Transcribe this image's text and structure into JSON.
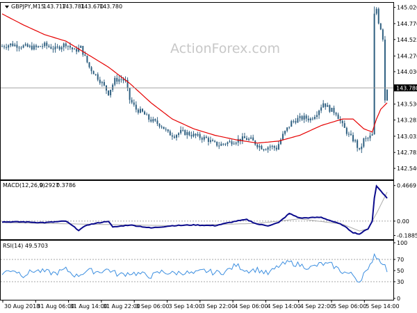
{
  "header": {
    "symbol": "GBPJPY,M15",
    "open": "143.717",
    "high": "143.781",
    "low": "143.670",
    "close": "143.780"
  },
  "watermark": "ActionForex.com",
  "colors": {
    "candle": "#2e5f80",
    "ma": "#e60000",
    "macd_hist": "#0a0a8c",
    "macd_signal": "#aaaaaa",
    "rsi": "#3b8ee0",
    "level_line": "#999999",
    "grid_dotted": "#888888"
  },
  "chart_data": [
    {
      "type": "candlestick",
      "title": "GBPJPY,M15",
      "ylim": [
        142.38,
        145.08
      ],
      "y_ticks": [
        "145.020",
        "144.770",
        "144.525",
        "144.270",
        "144.030",
        "143.780",
        "143.530",
        "143.285",
        "143.035",
        "142.785",
        "142.540"
      ],
      "current_price_label": "143.780",
      "x_tick_labels": [
        "30 Aug 2018",
        "31 Aug 06:00",
        "31 Aug 14:00",
        "31 Aug 22:00",
        "3 Sep 06:00",
        "3 Sep 14:00",
        "3 Sep 22:00",
        "4 Sep 06:00",
        "4 Sep 14:00",
        "4 Sep 22:00",
        "5 Sep 06:00",
        "5 Sep 14:00"
      ],
      "close_path": [
        [
          0,
          144.42
        ],
        [
          4,
          144.45
        ],
        [
          8,
          144.43
        ],
        [
          12,
          144.41
        ],
        [
          16,
          144.4
        ],
        [
          20,
          144.44
        ],
        [
          25,
          144.38
        ],
        [
          30,
          144.46
        ],
        [
          34,
          144.35
        ],
        [
          37,
          144.4
        ],
        [
          41,
          144.1
        ],
        [
          44,
          143.98
        ],
        [
          47,
          143.85
        ],
        [
          50,
          143.7
        ],
        [
          53,
          143.9
        ],
        [
          56,
          143.92
        ],
        [
          58,
          143.88
        ],
        [
          60,
          143.6
        ],
        [
          63,
          143.45
        ],
        [
          66,
          143.4
        ],
        [
          69,
          143.3
        ],
        [
          72,
          143.25
        ],
        [
          75,
          143.2
        ],
        [
          78,
          143.08
        ],
        [
          81,
          143.05
        ],
        [
          84,
          143.1
        ],
        [
          87,
          143.08
        ],
        [
          90,
          143.05
        ],
        [
          93,
          143.02
        ],
        [
          96,
          143.0
        ],
        [
          99,
          142.93
        ],
        [
          102,
          142.9
        ],
        [
          105,
          142.93
        ],
        [
          108,
          142.95
        ],
        [
          111,
          142.98
        ],
        [
          114,
          143.0
        ],
        [
          117,
          142.98
        ],
        [
          120,
          142.9
        ],
        [
          123,
          142.85
        ],
        [
          126,
          142.88
        ],
        [
          129,
          142.85
        ],
        [
          132,
          143.05
        ],
        [
          134,
          143.15
        ],
        [
          136,
          143.25
        ],
        [
          139,
          143.3
        ],
        [
          142,
          143.32
        ],
        [
          145,
          143.3
        ],
        [
          148,
          143.4
        ],
        [
          151,
          143.55
        ],
        [
          154,
          143.45
        ],
        [
          157,
          143.4
        ],
        [
          160,
          143.2
        ],
        [
          163,
          143.05
        ],
        [
          166,
          142.95
        ],
        [
          168,
          142.8
        ],
        [
          170,
          142.98
        ],
        [
          172,
          143.0
        ],
        [
          174,
          143.05
        ],
        [
          175,
          144.9
        ],
        [
          176,
          145.0
        ],
        [
          177,
          144.8
        ],
        [
          178,
          144.7
        ],
        [
          179,
          144.55
        ],
        [
          180,
          143.6
        ],
        [
          181,
          143.78
        ]
      ],
      "ma_path": [
        [
          0,
          144.92
        ],
        [
          10,
          144.75
        ],
        [
          20,
          144.6
        ],
        [
          30,
          144.5
        ],
        [
          40,
          144.3
        ],
        [
          50,
          144.1
        ],
        [
          60,
          143.85
        ],
        [
          70,
          143.55
        ],
        [
          80,
          143.3
        ],
        [
          90,
          143.15
        ],
        [
          100,
          143.05
        ],
        [
          110,
          142.98
        ],
        [
          120,
          142.93
        ],
        [
          130,
          142.96
        ],
        [
          140,
          143.05
        ],
        [
          150,
          143.2
        ],
        [
          160,
          143.3
        ],
        [
          165,
          143.3
        ],
        [
          170,
          143.15
        ],
        [
          174,
          143.1
        ],
        [
          176,
          143.3
        ],
        [
          178,
          143.45
        ],
        [
          181,
          143.55
        ]
      ]
    },
    {
      "type": "line",
      "title": "MACD(12,26,9)",
      "values_label": [
        "0.2927",
        "0.3786"
      ],
      "ylim": [
        -0.22,
        0.51
      ],
      "y_ticks": [
        "0.4669",
        "0.00",
        "-0.1885"
      ],
      "hist_path": [
        [
          0,
          -0.01
        ],
        [
          10,
          -0.01
        ],
        [
          20,
          -0.02
        ],
        [
          30,
          0.0
        ],
        [
          36,
          -0.12
        ],
        [
          40,
          -0.05
        ],
        [
          50,
          0.0
        ],
        [
          52,
          -0.08
        ],
        [
          60,
          -0.05
        ],
        [
          70,
          -0.09
        ],
        [
          80,
          -0.06
        ],
        [
          90,
          -0.05
        ],
        [
          100,
          -0.06
        ],
        [
          110,
          0.0
        ],
        [
          115,
          0.02
        ],
        [
          120,
          -0.04
        ],
        [
          125,
          -0.06
        ],
        [
          130,
          -0.02
        ],
        [
          135,
          0.1
        ],
        [
          140,
          0.04
        ],
        [
          150,
          0.05
        ],
        [
          155,
          0.0
        ],
        [
          160,
          -0.05
        ],
        [
          165,
          -0.15
        ],
        [
          168,
          -0.17
        ],
        [
          172,
          -0.1
        ],
        [
          174,
          0.0
        ],
        [
          175,
          0.3
        ],
        [
          176,
          0.46
        ],
        [
          178,
          0.4
        ],
        [
          181,
          0.3
        ]
      ],
      "signal_path": [
        [
          0,
          -0.02
        ],
        [
          40,
          -0.04
        ],
        [
          80,
          -0.06
        ],
        [
          120,
          -0.03
        ],
        [
          140,
          0.03
        ],
        [
          160,
          -0.04
        ],
        [
          168,
          -0.13
        ],
        [
          172,
          -0.1
        ],
        [
          176,
          0.1
        ],
        [
          181,
          0.38
        ]
      ]
    },
    {
      "type": "line",
      "title": "RSI(14)",
      "values_label": [
        "49.5703"
      ],
      "ylim": [
        0,
        100
      ],
      "y_ticks": [
        "100",
        "70",
        "50",
        "30",
        "0"
      ],
      "rsi_path": [
        [
          0,
          45
        ],
        [
          5,
          52
        ],
        [
          10,
          42
        ],
        [
          15,
          50
        ],
        [
          20,
          48
        ],
        [
          25,
          45
        ],
        [
          30,
          52
        ],
        [
          35,
          40
        ],
        [
          40,
          50
        ],
        [
          45,
          48
        ],
        [
          50,
          52
        ],
        [
          55,
          42
        ],
        [
          60,
          46
        ],
        [
          65,
          44
        ],
        [
          70,
          40
        ],
        [
          75,
          48
        ],
        [
          80,
          45
        ],
        [
          85,
          47
        ],
        [
          90,
          44
        ],
        [
          95,
          50
        ],
        [
          100,
          46
        ],
        [
          105,
          48
        ],
        [
          110,
          60
        ],
        [
          115,
          50
        ],
        [
          120,
          52
        ],
        [
          125,
          44
        ],
        [
          130,
          58
        ],
        [
          135,
          65
        ],
        [
          140,
          60
        ],
        [
          145,
          55
        ],
        [
          150,
          62
        ],
        [
          155,
          60
        ],
        [
          160,
          48
        ],
        [
          165,
          42
        ],
        [
          168,
          30
        ],
        [
          170,
          45
        ],
        [
          172,
          48
        ],
        [
          175,
          80
        ],
        [
          177,
          70
        ],
        [
          179,
          65
        ],
        [
          181,
          50
        ]
      ]
    }
  ]
}
